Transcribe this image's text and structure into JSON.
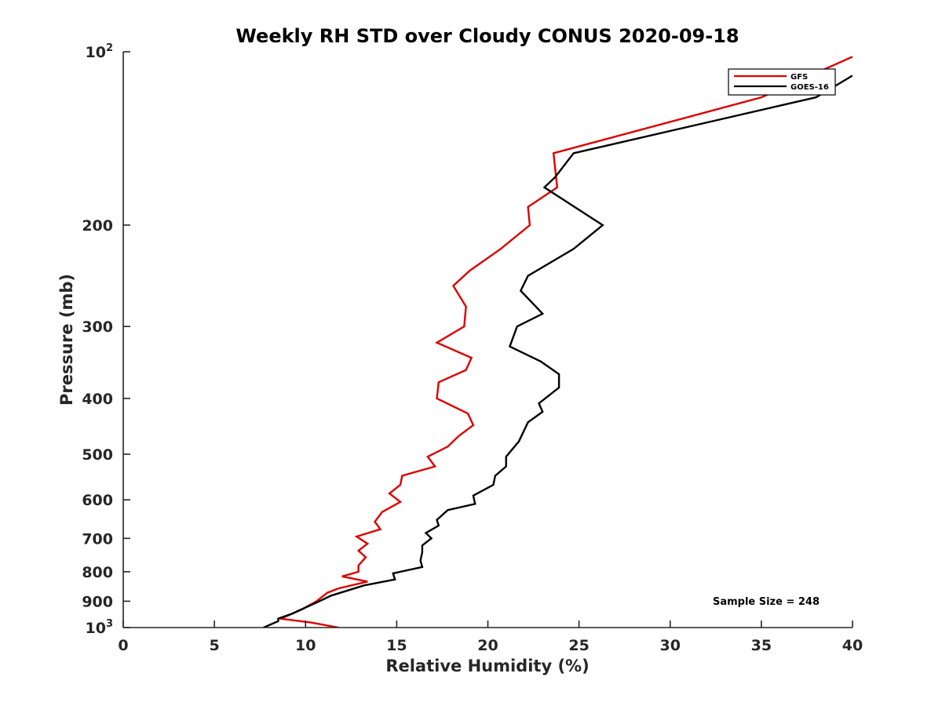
{
  "chart_data": {
    "type": "line",
    "title": "Weekly RH STD over Cloudy CONUS 2020-09-18",
    "xlabel": "Relative Humidity (%)",
    "ylabel": "Pressure (mb)",
    "xlim": [
      0,
      40
    ],
    "ylim": [
      100,
      1000
    ],
    "yscale": "log",
    "y_reversed": true,
    "grid": false,
    "legend": "top-right",
    "x_ticks": [
      0,
      5,
      10,
      15,
      20,
      25,
      30,
      35,
      40
    ],
    "x_tick_labels": [
      "0",
      "5",
      "10",
      "15",
      "20",
      "25",
      "30",
      "35",
      "40"
    ],
    "y_ticks": [
      {
        "value": 100,
        "base": "10",
        "exp": "2"
      },
      {
        "value": 200,
        "label": "200"
      },
      {
        "value": 300,
        "label": "300"
      },
      {
        "value": 400,
        "label": "400"
      },
      {
        "value": 500,
        "label": "500"
      },
      {
        "value": 600,
        "label": "600"
      },
      {
        "value": 700,
        "label": "700"
      },
      {
        "value": 800,
        "label": "800"
      },
      {
        "value": 900,
        "label": "900"
      },
      {
        "value": 1000,
        "base": "10",
        "exp": "3"
      }
    ],
    "annotation": "Sample Size = 248",
    "series": [
      {
        "name": "GFS",
        "color": "#dd0000",
        "points": [
          {
            "x": 40.0,
            "y": 102
          },
          {
            "x": 35.0,
            "y": 120
          },
          {
            "x": 23.6,
            "y": 150
          },
          {
            "x": 23.8,
            "y": 172
          },
          {
            "x": 22.2,
            "y": 186
          },
          {
            "x": 22.3,
            "y": 200
          },
          {
            "x": 20.7,
            "y": 220
          },
          {
            "x": 19.0,
            "y": 240
          },
          {
            "x": 18.1,
            "y": 255
          },
          {
            "x": 18.8,
            "y": 277
          },
          {
            "x": 18.7,
            "y": 300
          },
          {
            "x": 17.2,
            "y": 320
          },
          {
            "x": 19.1,
            "y": 340
          },
          {
            "x": 18.8,
            "y": 357
          },
          {
            "x": 17.3,
            "y": 375
          },
          {
            "x": 17.2,
            "y": 400
          },
          {
            "x": 18.9,
            "y": 425
          },
          {
            "x": 19.2,
            "y": 445
          },
          {
            "x": 18.4,
            "y": 465
          },
          {
            "x": 17.8,
            "y": 485
          },
          {
            "x": 16.7,
            "y": 505
          },
          {
            "x": 17.1,
            "y": 525
          },
          {
            "x": 15.3,
            "y": 545
          },
          {
            "x": 15.2,
            "y": 565
          },
          {
            "x": 14.6,
            "y": 585
          },
          {
            "x": 15.2,
            "y": 605
          },
          {
            "x": 14.2,
            "y": 630
          },
          {
            "x": 13.8,
            "y": 655
          },
          {
            "x": 14.1,
            "y": 675
          },
          {
            "x": 12.8,
            "y": 695
          },
          {
            "x": 13.4,
            "y": 715
          },
          {
            "x": 12.9,
            "y": 735
          },
          {
            "x": 13.3,
            "y": 755
          },
          {
            "x": 12.9,
            "y": 780
          },
          {
            "x": 12.9,
            "y": 800
          },
          {
            "x": 12.0,
            "y": 815
          },
          {
            "x": 13.4,
            "y": 832
          },
          {
            "x": 11.8,
            "y": 855
          },
          {
            "x": 11.2,
            "y": 870
          },
          {
            "x": 10.6,
            "y": 900
          },
          {
            "x": 9.8,
            "y": 930
          },
          {
            "x": 8.8,
            "y": 960
          },
          {
            "x": 8.6,
            "y": 965
          },
          {
            "x": 10.3,
            "y": 980
          },
          {
            "x": 11.8,
            "y": 1000
          }
        ]
      },
      {
        "name": "GOES-16",
        "color": "#000000",
        "points": [
          {
            "x": 40.0,
            "y": 110
          },
          {
            "x": 38.0,
            "y": 120
          },
          {
            "x": 24.7,
            "y": 150
          },
          {
            "x": 23.7,
            "y": 165
          },
          {
            "x": 23.1,
            "y": 172
          },
          {
            "x": 26.3,
            "y": 200
          },
          {
            "x": 24.7,
            "y": 220
          },
          {
            "x": 22.2,
            "y": 245
          },
          {
            "x": 21.8,
            "y": 260
          },
          {
            "x": 23.0,
            "y": 285
          },
          {
            "x": 21.6,
            "y": 300
          },
          {
            "x": 21.2,
            "y": 325
          },
          {
            "x": 22.9,
            "y": 345
          },
          {
            "x": 23.9,
            "y": 363
          },
          {
            "x": 23.9,
            "y": 383
          },
          {
            "x": 22.8,
            "y": 408
          },
          {
            "x": 23.0,
            "y": 422
          },
          {
            "x": 22.2,
            "y": 440
          },
          {
            "x": 21.7,
            "y": 475
          },
          {
            "x": 21.0,
            "y": 505
          },
          {
            "x": 21.0,
            "y": 525
          },
          {
            "x": 20.4,
            "y": 545
          },
          {
            "x": 20.3,
            "y": 565
          },
          {
            "x": 19.2,
            "y": 590
          },
          {
            "x": 19.3,
            "y": 610
          },
          {
            "x": 17.8,
            "y": 625
          },
          {
            "x": 17.2,
            "y": 650
          },
          {
            "x": 17.3,
            "y": 665
          },
          {
            "x": 16.6,
            "y": 685
          },
          {
            "x": 16.9,
            "y": 700
          },
          {
            "x": 16.4,
            "y": 720
          },
          {
            "x": 16.4,
            "y": 740
          },
          {
            "x": 16.3,
            "y": 765
          },
          {
            "x": 16.4,
            "y": 785
          },
          {
            "x": 14.8,
            "y": 805
          },
          {
            "x": 14.9,
            "y": 825
          },
          {
            "x": 13.2,
            "y": 845
          },
          {
            "x": 11.4,
            "y": 880
          },
          {
            "x": 10.6,
            "y": 905
          },
          {
            "x": 9.6,
            "y": 935
          },
          {
            "x": 9.3,
            "y": 945
          },
          {
            "x": 8.5,
            "y": 965
          },
          {
            "x": 8.5,
            "y": 975
          },
          {
            "x": 7.7,
            "y": 1000
          }
        ]
      }
    ]
  }
}
